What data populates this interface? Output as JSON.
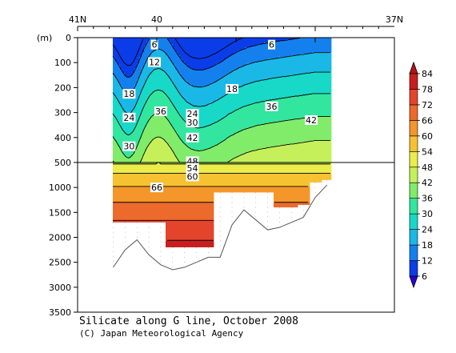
{
  "chart_data": {
    "type": "heatmap",
    "title": "Silicate along G line, October 2008",
    "credit": "(C) Japan Meteorological Agency",
    "ylabel": "(m)",
    "x_ticks": [
      {
        "label": "41N",
        "lat": 41
      },
      {
        "label": "40",
        "lat": 40
      },
      {
        "label": "37N",
        "lat": 37
      }
    ],
    "xlim": [
      41,
      37
    ],
    "y_upper": {
      "range": [
        0,
        500
      ],
      "ticks": [
        0,
        100,
        200,
        300,
        400,
        500
      ]
    },
    "y_lower": {
      "range": [
        500,
        3500
      ],
      "ticks": [
        1000,
        1500,
        2000,
        2500,
        3000,
        3500
      ]
    },
    "colorbar": {
      "levels": [
        6,
        12,
        18,
        24,
        30,
        36,
        42,
        48,
        54,
        60,
        66,
        72,
        78,
        84
      ],
      "colors": [
        "#2a00d8",
        "#0a3ce8",
        "#1480ee",
        "#1ab8e6",
        "#18d8c8",
        "#32e6a0",
        "#80ec6a",
        "#c6f05a",
        "#ecec4a",
        "#f6c232",
        "#f4962a",
        "#ec6a2c",
        "#e4442c",
        "#c81e1e",
        "#b41414"
      ]
    },
    "section": {
      "lat_start": 40.55,
      "lat_end": 37.8,
      "stations": [
        40.55,
        40.4,
        40.25,
        40.1,
        39.95,
        39.8,
        39.65,
        39.5,
        39.35,
        39.2,
        39.05,
        38.9,
        38.75,
        38.6,
        38.45,
        38.3,
        38.15,
        38.0,
        37.85
      ],
      "bottom_depth_m": [
        2600,
        2250,
        2050,
        2350,
        2550,
        2650,
        2600,
        2500,
        2400,
        2400,
        1750,
        1450,
        1650,
        1850,
        1800,
        1700,
        1600,
        1200,
        950
      ],
      "data_max_depth_m": [
        1700,
        1700,
        1700,
        1700,
        1700,
        2200,
        2200,
        2200,
        2200,
        1100,
        1100,
        1100,
        1100,
        1100,
        1400,
        1400,
        1350,
        900,
        850
      ]
    },
    "contour_labels": [
      {
        "value": "6",
        "lat": 40.03,
        "depth": 28
      },
      {
        "value": "6",
        "lat": 38.55,
        "depth": 28
      },
      {
        "value": "12",
        "lat": 40.03,
        "depth": 98
      },
      {
        "value": "18",
        "lat": 40.35,
        "depth": 225
      },
      {
        "value": "18",
        "lat": 39.05,
        "depth": 205
      },
      {
        "value": "24",
        "lat": 40.35,
        "depth": 320
      },
      {
        "value": "36",
        "lat": 39.95,
        "depth": 295
      },
      {
        "value": "24",
        "lat": 39.55,
        "depth": 305
      },
      {
        "value": "30",
        "lat": 39.55,
        "depth": 340
      },
      {
        "value": "36",
        "lat": 38.55,
        "depth": 275
      },
      {
        "value": "42",
        "lat": 38.05,
        "depth": 330
      },
      {
        "value": "42",
        "lat": 39.55,
        "depth": 400
      },
      {
        "value": "30",
        "lat": 40.35,
        "depth": 435
      },
      {
        "value": "48",
        "lat": 39.55,
        "depth": 495
      },
      {
        "value": "54",
        "lat": 39.55,
        "depth": 610
      },
      {
        "value": "60",
        "lat": 39.55,
        "depth": 780
      },
      {
        "value": "66",
        "lat": 40.0,
        "depth": 1000
      }
    ]
  }
}
